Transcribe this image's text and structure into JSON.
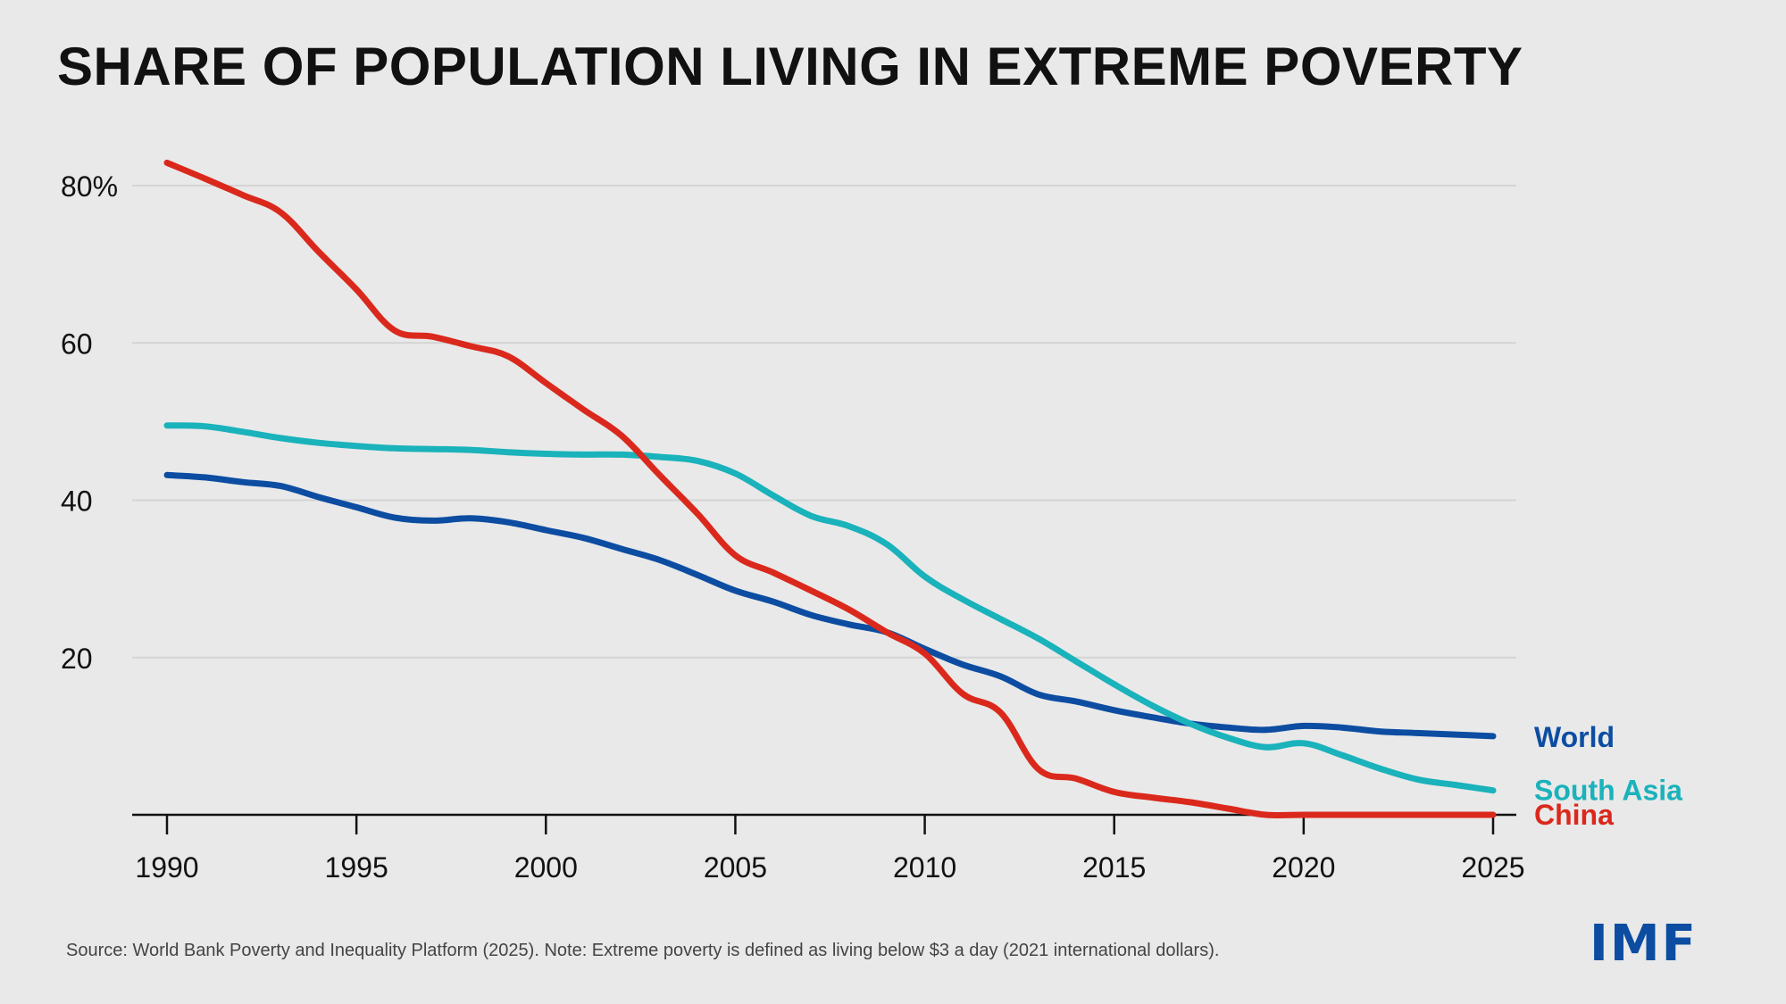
{
  "chart_data": {
    "type": "line",
    "title": "SHARE OF POPULATION LIVING IN EXTREME POVERTY",
    "xlabel": "",
    "ylabel": "",
    "xlim": [
      1990,
      2025
    ],
    "ylim": [
      0,
      80
    ],
    "grid": true,
    "x_ticks": [
      1990,
      1995,
      2000,
      2005,
      2010,
      2015,
      2020,
      2025
    ],
    "x_tick_labels": [
      "1990",
      "1995",
      "2000",
      "2005",
      "2010",
      "2015",
      "2020",
      "2025"
    ],
    "y_ticks": [
      20,
      40,
      60,
      80
    ],
    "y_tick_labels": [
      "20",
      "40",
      "60",
      "80%"
    ],
    "x": [
      1990,
      1991,
      1992,
      1993,
      1994,
      1995,
      1996,
      1997,
      1998,
      1999,
      2000,
      2001,
      2002,
      2003,
      2004,
      2005,
      2006,
      2007,
      2008,
      2009,
      2010,
      2011,
      2012,
      2013,
      2014,
      2015,
      2016,
      2017,
      2018,
      2019,
      2020,
      2021,
      2022,
      2023,
      2024,
      2025
    ],
    "series": [
      {
        "name": "World",
        "color": "#0c4da2",
        "values": [
          43.2,
          42.9,
          42.3,
          41.8,
          40.4,
          39.1,
          37.8,
          37.4,
          37.7,
          37.2,
          36.2,
          35.2,
          33.8,
          32.4,
          30.5,
          28.5,
          27.1,
          25.4,
          24.2,
          23.2,
          21.1,
          19.1,
          17.6,
          15.3,
          14.4,
          13.3,
          12.4,
          11.6,
          11.1,
          10.8,
          11.3,
          11.1,
          10.6,
          10.4,
          10.2,
          10.0
        ]
      },
      {
        "name": "South Asia",
        "color": "#1ab2bb",
        "values": [
          49.5,
          49.4,
          48.7,
          47.9,
          47.3,
          46.9,
          46.6,
          46.5,
          46.4,
          46.1,
          45.9,
          45.8,
          45.8,
          45.5,
          45.0,
          43.4,
          40.6,
          38.0,
          36.7,
          34.4,
          30.3,
          27.4,
          24.9,
          22.4,
          19.5,
          16.6,
          13.9,
          11.6,
          9.8,
          8.6,
          9.1,
          7.6,
          5.9,
          4.5,
          3.8,
          3.1
        ]
      },
      {
        "name": "China",
        "color": "#da291c",
        "values": [
          82.9,
          80.9,
          78.8,
          76.6,
          71.6,
          66.8,
          61.6,
          60.8,
          59.6,
          58.3,
          54.9,
          51.5,
          48.2,
          43.2,
          38.3,
          33.0,
          30.8,
          28.5,
          26.1,
          23.2,
          20.5,
          15.4,
          13.0,
          5.8,
          4.6,
          2.9,
          2.2,
          1.6,
          0.8,
          0.0,
          0.0,
          0.0,
          0.0,
          0.0,
          0.0,
          0.0
        ]
      }
    ],
    "legend": "end-of-line labels on right"
  },
  "footer": {
    "source": "Source: World Bank Poverty and Inequality Platform (2025). Note: Extreme poverty is defined as living below $3 a day (2021 international dollars)."
  },
  "logo": {
    "text": "IMF",
    "color": "#0c4da2"
  }
}
